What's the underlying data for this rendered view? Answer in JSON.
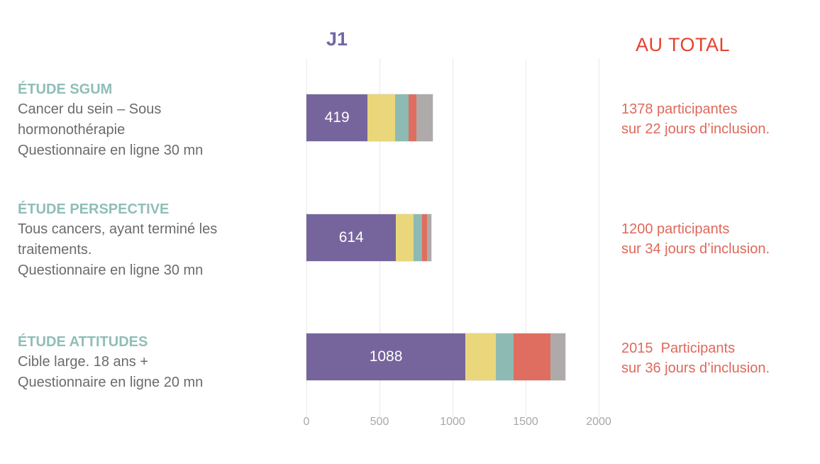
{
  "header": {
    "chart_title": "J1",
    "total_title": "AU TOTAL"
  },
  "studies": [
    {
      "name": "ÉTUDE SGUM",
      "description": "Cancer du sein – Sous\nhormonothérapie\nQuestionnaire en ligne 30 mn",
      "bar_label": "419",
      "total": "1378 participantes\nsur 22 jours d’inclusion."
    },
    {
      "name": "ÉTUDE PERSPECTIVE",
      "description": "Tous cancers, ayant terminé les\ntraitements.\nQuestionnaire en ligne 30 mn",
      "bar_label": "614",
      "total": "1200 participants\nsur 34 jours d’inclusion."
    },
    {
      "name": "ÉTUDE ATTITUDES",
      "description": "Cible large. 18 ans +\nQuestionnaire en ligne 20 mn",
      "bar_label": "1088",
      "total": "2015  Participants\nsur 36 jours d’inclusion."
    }
  ],
  "chart_data": {
    "type": "bar",
    "orientation": "horizontal",
    "stacked": true,
    "title": "J1",
    "categories": [
      "ÉTUDE SGUM",
      "ÉTUDE PERSPECTIVE",
      "ÉTUDE ATTITUDES"
    ],
    "series": [
      {
        "name": "violet",
        "color": "#76659D",
        "values": [
          419,
          614,
          1088
        ],
        "data_labels": true
      },
      {
        "name": "jaune",
        "color": "#EAD77C",
        "values": [
          190,
          120,
          210
        ]
      },
      {
        "name": "turquoise",
        "color": "#8DBAB2",
        "values": [
          90,
          55,
          120
        ]
      },
      {
        "name": "rouge",
        "color": "#DF6E60",
        "values": [
          55,
          35,
          250
        ]
      },
      {
        "name": "gris",
        "color": "#AEAAA9",
        "values": [
          110,
          30,
          105
        ]
      }
    ],
    "xlim": [
      0,
      2000
    ],
    "x_ticks": [
      0,
      500,
      1000,
      1500,
      2000
    ],
    "grid": true,
    "legend": false
  },
  "colors": {
    "chart_title": "#7466A6",
    "total_title": "#E5422F",
    "study_heading": "#8FBEB6",
    "study_body": "#6b6b6b",
    "totals_text": "#DE695B",
    "axis_labels": "#a8a8a8"
  }
}
